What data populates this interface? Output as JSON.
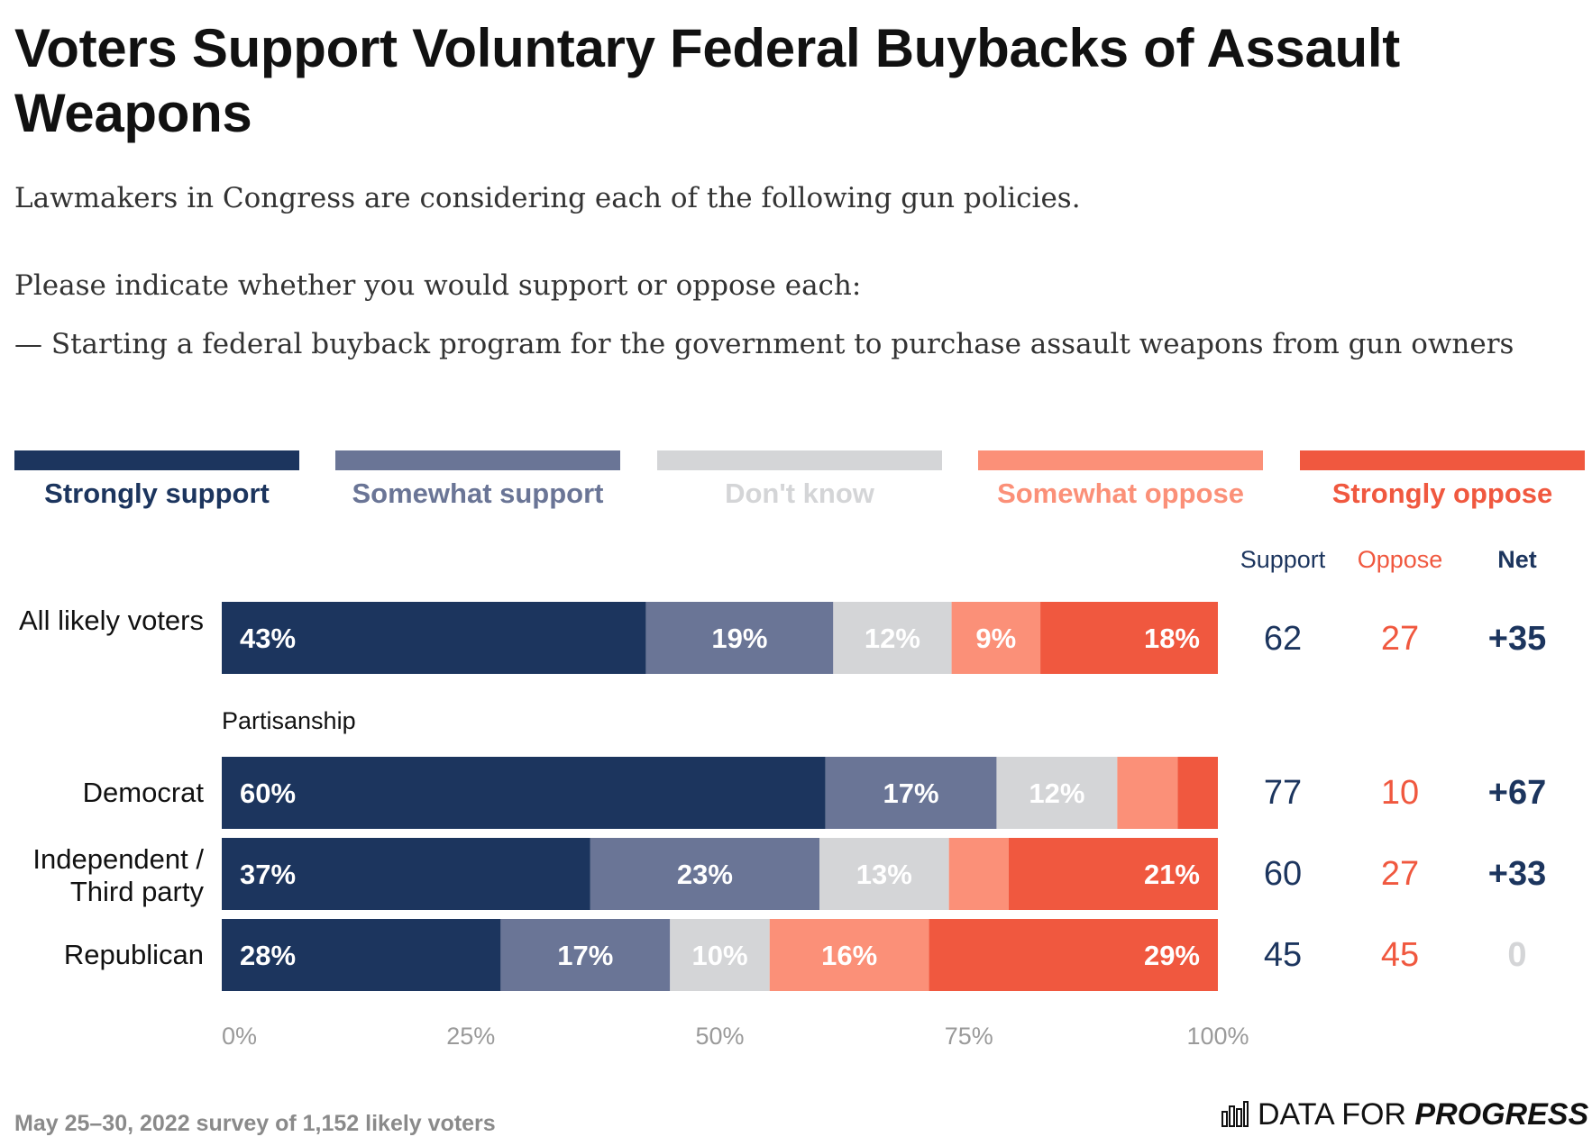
{
  "title": "Voters Support Voluntary Federal Buybacks of Assault Weapons",
  "subtitle": {
    "line1": "Lawmakers in Congress are considering each of the following gun policies.",
    "line2": "Please indicate whether you would support or oppose each:",
    "line3": "— Starting a federal buyback program for the government to purchase assault weapons from gun owners"
  },
  "colors": {
    "strongly_support": "#1c355e",
    "somewhat_support": "#6a7596",
    "dont_know": "#d4d5d7",
    "somewhat_oppose": "#fb9078",
    "strongly_oppose": "#f0583f",
    "axis_text": "#9a9a9a"
  },
  "columns": {
    "support": "Support",
    "oppose": "Oppose",
    "net": "Net"
  },
  "group_label": "Partisanship",
  "rows": [
    {
      "label": "All likely voters",
      "support": "62",
      "oppose": "27",
      "net": "+35"
    },
    {
      "label": "Democrat",
      "support": "77",
      "oppose": "10",
      "net": "+67"
    },
    {
      "label": "Independent / Third party",
      "support": "60",
      "oppose": "27",
      "net": "+33"
    },
    {
      "label": "Republican",
      "support": "45",
      "oppose": "45",
      "net": "0"
    }
  ],
  "chart_data": {
    "type": "bar",
    "orientation": "horizontal",
    "stacked": true,
    "categories": [
      "All likely voters",
      "Democrat",
      "Independent / Third party",
      "Republican"
    ],
    "series": [
      {
        "name": "Strongly support",
        "values": [
          43,
          60,
          37,
          28
        ],
        "labels": [
          "43%",
          "60%",
          "37%",
          "28%"
        ]
      },
      {
        "name": "Somewhat support",
        "values": [
          19,
          17,
          23,
          17
        ],
        "labels": [
          "19%",
          "17%",
          "23%",
          "17%"
        ]
      },
      {
        "name": "Don't know",
        "values": [
          12,
          12,
          13,
          10
        ],
        "labels": [
          "12%",
          "12%",
          "13%",
          "10%"
        ]
      },
      {
        "name": "Somewhat oppose",
        "values": [
          9,
          6,
          6,
          16
        ],
        "labels": [
          "9%",
          "",
          "",
          "16%"
        ]
      },
      {
        "name": "Strongly oppose",
        "values": [
          18,
          4,
          21,
          29
        ],
        "labels": [
          "18%",
          "",
          "21%",
          "29%"
        ]
      }
    ],
    "xlim": [
      0,
      100
    ],
    "xticks": [
      "0%",
      "25%",
      "50%",
      "75%",
      "100%"
    ],
    "legend": "top",
    "grid": false
  },
  "footer": "May 25–30, 2022 survey of 1,152 likely voters",
  "brand": {
    "prefix": "DATA FOR ",
    "bold": "PROGRESS"
  }
}
